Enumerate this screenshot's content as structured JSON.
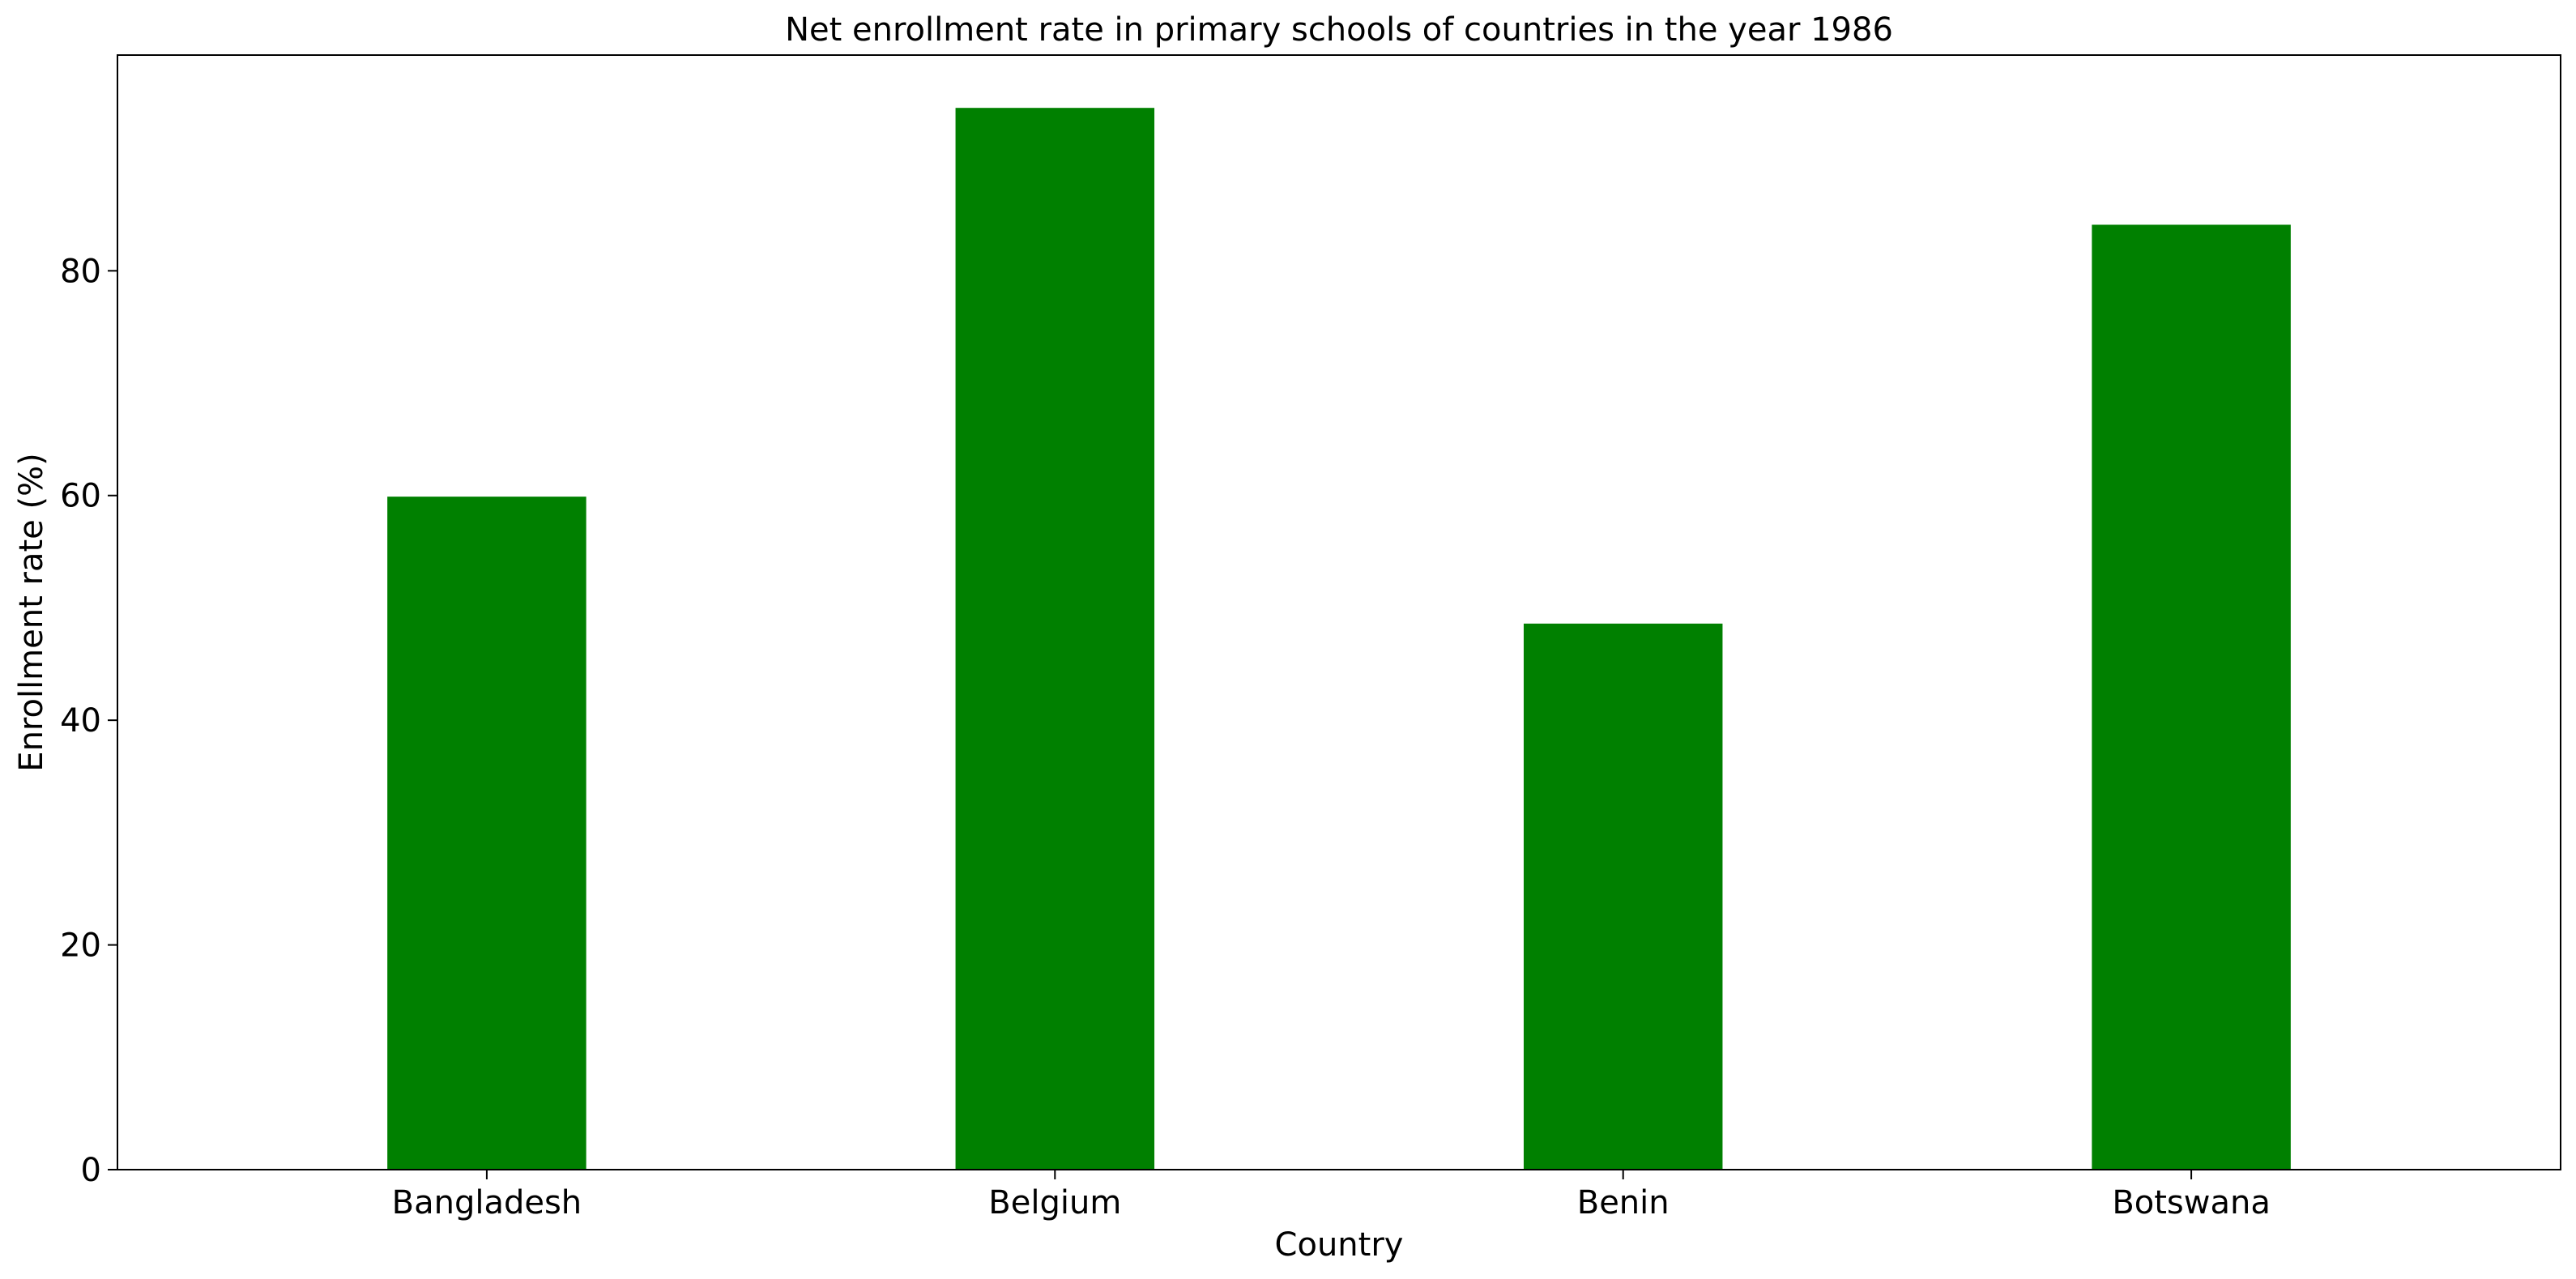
{
  "chart_data": {
    "type": "bar",
    "title": "Net enrollment rate in primary schools of countries in the year 1986",
    "xlabel": "Country",
    "ylabel": "Enrollment rate (%)",
    "categories": [
      "Bangladesh",
      "Belgium",
      "Benin",
      "Botswana"
    ],
    "values": [
      59.9,
      94.5,
      48.6,
      84.1
    ],
    "ylim": [
      0,
      99.2
    ],
    "yticks": [
      0,
      20,
      40,
      60,
      80
    ],
    "grid": false,
    "legend": "none",
    "bar_color": "#008000"
  }
}
